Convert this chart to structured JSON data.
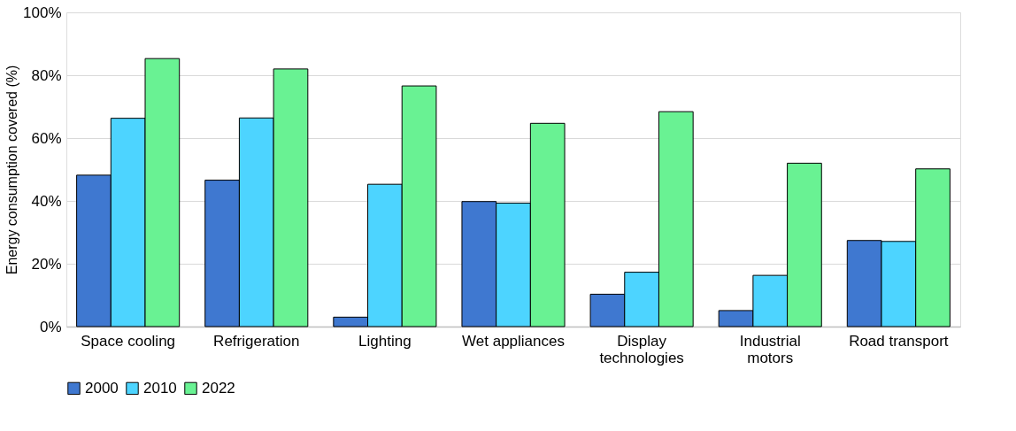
{
  "chart_data": {
    "type": "bar",
    "ylabel": "Energy consumption covered (%)",
    "categories": [
      "Space cooling",
      "Refrigeration",
      "Lighting",
      "Wet appliances",
      "Display technologies",
      "Industrial motors",
      "Road transport"
    ],
    "series": [
      {
        "name": "2000",
        "color": "#3f78d0",
        "values": [
          48.2,
          46.6,
          3.0,
          39.8,
          10.3,
          5.1,
          27.4
        ]
      },
      {
        "name": "2010",
        "color": "#4dd4ff",
        "values": [
          66.3,
          66.4,
          45.3,
          39.3,
          17.3,
          16.3,
          27.1
        ]
      },
      {
        "name": "2022",
        "color": "#69f293",
        "values": [
          85.3,
          82.0,
          76.6,
          64.7,
          68.4,
          52.0,
          50.2
        ]
      }
    ],
    "ylim": [
      0,
      100
    ],
    "yticks": [
      {
        "value": 0,
        "label": "0%"
      },
      {
        "value": 20,
        "label": "20%"
      },
      {
        "value": 40,
        "label": "40%"
      },
      {
        "value": 60,
        "label": "60%"
      },
      {
        "value": 80,
        "label": "80%"
      },
      {
        "value": 100,
        "label": "100%"
      }
    ],
    "grid": "y",
    "legend": "bottom"
  }
}
